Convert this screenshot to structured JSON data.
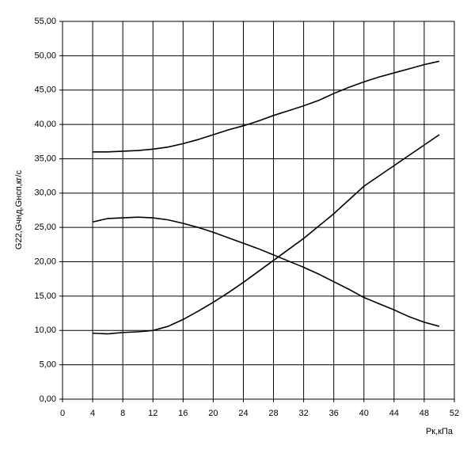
{
  "chart_data": {
    "type": "line",
    "x_label": "Рк,кПа",
    "y_label": "G22,Gчнд,Gнсп,кг/с",
    "x": [
      4,
      6,
      8,
      10,
      12,
      14,
      16,
      18,
      20,
      22,
      24,
      26,
      28,
      30,
      32,
      34,
      36,
      38,
      40,
      42,
      44,
      46,
      48,
      50
    ],
    "series": [
      {
        "color": "#000000",
        "values": [
          36.0,
          36.0,
          36.1,
          36.2,
          36.4,
          36.7,
          37.2,
          37.8,
          38.5,
          39.2,
          39.8,
          40.5,
          41.3,
          42.0,
          42.7,
          43.5,
          44.5,
          45.4,
          46.2,
          46.9,
          47.5,
          48.1,
          48.7,
          49.2
        ]
      },
      {
        "color": "#000000",
        "values": [
          25.8,
          26.3,
          26.4,
          26.5,
          26.4,
          26.1,
          25.6,
          25.0,
          24.3,
          23.5,
          22.7,
          21.9,
          21.0,
          20.1,
          19.2,
          18.2,
          17.1,
          16.0,
          14.8,
          13.9,
          13.0,
          12.0,
          11.2,
          10.6
        ]
      },
      {
        "color": "#000000",
        "values": [
          9.6,
          9.5,
          9.7,
          9.8,
          10.0,
          10.6,
          11.6,
          12.8,
          14.1,
          15.5,
          17.0,
          18.6,
          20.2,
          21.8,
          23.4,
          25.2,
          27.0,
          29.0,
          31.0,
          32.5,
          34.0,
          35.5,
          37.0,
          38.5
        ]
      }
    ],
    "xlim": [
      0,
      52
    ],
    "xticks": [
      0,
      4,
      8,
      12,
      16,
      20,
      24,
      28,
      32,
      36,
      40,
      44,
      48,
      52
    ],
    "ylim": [
      0,
      55
    ],
    "yticks": [
      {
        "value": 0,
        "label": "0,00"
      },
      {
        "value": 5,
        "label": "5,00"
      },
      {
        "value": 10,
        "label": "10,00"
      },
      {
        "value": 15,
        "label": "15,00"
      },
      {
        "value": 20,
        "label": "20,00"
      },
      {
        "value": 25,
        "label": "25,00"
      },
      {
        "value": 30,
        "label": "30,00"
      },
      {
        "value": 35,
        "label": "35,00"
      },
      {
        "value": 40,
        "label": "40,00"
      },
      {
        "value": 45,
        "label": "45,00"
      },
      {
        "value": 50,
        "label": "50,00"
      },
      {
        "value": 55,
        "label": "55,00"
      }
    ],
    "grid": true
  }
}
